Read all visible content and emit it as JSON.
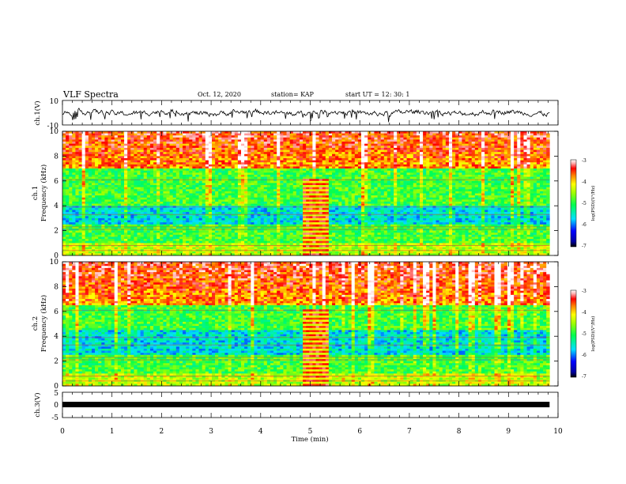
{
  "header": {
    "title": "VLF Spectra",
    "date": "Oct. 12, 2020",
    "station": "station= KAP",
    "start": "start  UT  =   12: 30: 1"
  },
  "chart_data": [
    {
      "type": "line",
      "ylabel": "ch.1(V)",
      "ylim": [
        -10,
        10
      ],
      "yticks": [
        "10",
        "-10"
      ],
      "description_series": "noisy waveform around 0 V, range roughly -3 to 3 V, with occasional spikes to about -6 V"
    },
    {
      "type": "heatmap",
      "ylabel": "ch.1\nFrequency  (kHz)",
      "ylim": [
        0,
        10
      ],
      "yticks": [
        "0",
        "2",
        "4",
        "6",
        "8",
        "10"
      ],
      "colorbar": {
        "label": "log(PSD)(V²/Hz)",
        "range": [
          -7,
          -3
        ],
        "ticks": [
          "-3",
          "-4",
          "-5",
          "-6",
          "-7"
        ]
      },
      "features": {
        "broadband_burst_min": [
          4.85,
          5.4
        ],
        "low_psd_band_kHz": [
          2.5,
          4.0
        ],
        "high_psd_above_kHz": 7
      }
    },
    {
      "type": "heatmap",
      "ylabel": "ch.2\nFrequency  (kHz)",
      "ylim": [
        0,
        10
      ],
      "yticks": [
        "0",
        "2",
        "4",
        "6",
        "8",
        "10"
      ],
      "colorbar": {
        "label": "log(PSD)(V²/Hz)",
        "range": [
          -7,
          -3
        ],
        "ticks": [
          "-3",
          "-4",
          "-5",
          "-6",
          "-7"
        ]
      },
      "features": {
        "broadband_burst_min": [
          4.85,
          5.4
        ],
        "low_psd_band_kHz": [
          2.5,
          4.5
        ],
        "high_psd_above_kHz": 6.5
      }
    },
    {
      "type": "line",
      "ylabel": "ch.3(V)",
      "ylim": [
        -5,
        5
      ],
      "yticks": [
        "5",
        "0",
        "-5"
      ],
      "description_series": "thick flat band near 0 V"
    }
  ],
  "xaxis": {
    "label": "Time  (min)",
    "range": [
      0,
      10
    ],
    "ticks": [
      "0",
      "1",
      "2",
      "3",
      "4",
      "5",
      "6",
      "7",
      "8",
      "9",
      "10"
    ],
    "data_end_min": 9.83
  }
}
